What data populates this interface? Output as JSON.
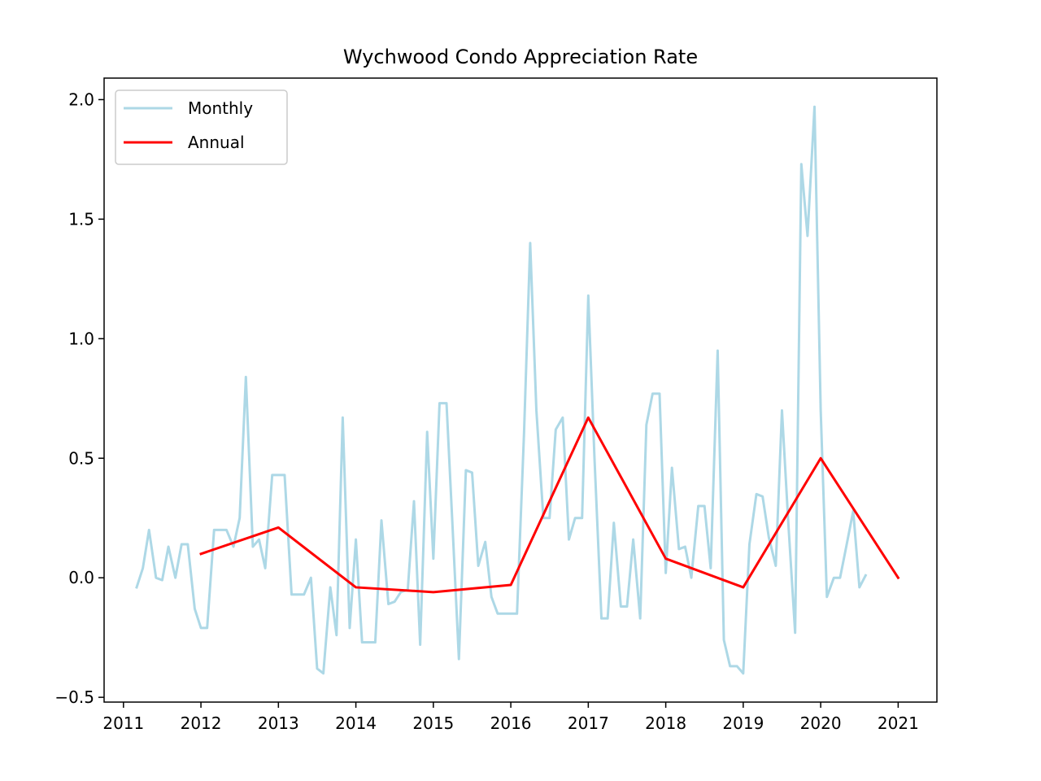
{
  "chart_data": {
    "type": "line",
    "title": "Wychwood Condo Appreciation Rate",
    "xlabel": "",
    "ylabel": "",
    "xlim": [
      2010.75,
      2021.5
    ],
    "ylim": [
      -0.52,
      2.09
    ],
    "x_ticks": [
      2011,
      2012,
      2013,
      2014,
      2015,
      2016,
      2017,
      2018,
      2019,
      2020,
      2021
    ],
    "x_tick_labels": [
      "2011",
      "2012",
      "2013",
      "2014",
      "2015",
      "2016",
      "2017",
      "2018",
      "2019",
      "2020",
      "2021"
    ],
    "y_ticks": [
      -0.5,
      0.0,
      0.5,
      1.0,
      1.5,
      2.0
    ],
    "y_tick_labels": [
      "−0.5",
      "0.0",
      "0.5",
      "1.0",
      "1.5",
      "2.0"
    ],
    "grid": false,
    "legend_position": "top-left",
    "series": [
      {
        "name": "Monthly",
        "color": "#add8e6",
        "x": [
          2011.17,
          2011.25,
          2011.33,
          2011.42,
          2011.5,
          2011.58,
          2011.67,
          2011.75,
          2011.83,
          2011.92,
          2012.0,
          2012.08,
          2012.17,
          2012.25,
          2012.33,
          2012.42,
          2012.5,
          2012.58,
          2012.67,
          2012.75,
          2012.83,
          2012.92,
          2013.0,
          2013.08,
          2013.17,
          2013.25,
          2013.33,
          2013.42,
          2013.5,
          2013.58,
          2013.67,
          2013.75,
          2013.83,
          2013.92,
          2014.0,
          2014.08,
          2014.17,
          2014.25,
          2014.33,
          2014.42,
          2014.5,
          2014.58,
          2014.67,
          2014.75,
          2014.83,
          2014.92,
          2015.0,
          2015.08,
          2015.17,
          2015.25,
          2015.33,
          2015.42,
          2015.5,
          2015.58,
          2015.67,
          2015.75,
          2015.83,
          2015.92,
          2016.0,
          2016.08,
          2016.17,
          2016.25,
          2016.33,
          2016.42,
          2016.5,
          2016.58,
          2016.67,
          2016.75,
          2016.83,
          2016.92,
          2017.0,
          2017.08,
          2017.17,
          2017.25,
          2017.33,
          2017.42,
          2017.5,
          2017.58,
          2017.67,
          2017.75,
          2017.83,
          2017.92,
          2018.0,
          2018.08,
          2018.17,
          2018.25,
          2018.33,
          2018.42,
          2018.5,
          2018.58,
          2018.67,
          2018.75,
          2018.83,
          2018.92,
          2019.0,
          2019.08,
          2019.17,
          2019.25,
          2019.33,
          2019.42,
          2019.5,
          2019.58,
          2019.67,
          2019.75,
          2019.83,
          2019.92,
          2020.0,
          2020.08,
          2020.17,
          2020.25,
          2020.33,
          2020.42,
          2020.5,
          2020.58
        ],
        "values": [
          -0.04,
          0.04,
          0.2,
          0.0,
          -0.01,
          0.13,
          0.0,
          0.14,
          0.14,
          -0.13,
          -0.21,
          -0.21,
          0.2,
          0.2,
          0.2,
          0.13,
          0.25,
          0.84,
          0.13,
          0.16,
          0.04,
          0.43,
          0.43,
          0.43,
          -0.07,
          -0.07,
          -0.07,
          0.0,
          -0.38,
          -0.4,
          -0.04,
          -0.24,
          0.67,
          -0.21,
          0.16,
          -0.27,
          -0.27,
          -0.27,
          0.24,
          -0.11,
          -0.1,
          -0.06,
          -0.05,
          0.32,
          -0.28,
          0.61,
          0.08,
          0.73,
          0.73,
          0.2,
          -0.34,
          0.45,
          0.44,
          0.05,
          0.15,
          -0.08,
          -0.15,
          -0.15,
          -0.15,
          -0.15,
          0.6,
          1.4,
          0.7,
          0.25,
          0.25,
          0.62,
          0.67,
          0.16,
          0.25,
          0.25,
          1.18,
          0.5,
          -0.17,
          -0.17,
          0.23,
          -0.12,
          -0.12,
          0.16,
          -0.17,
          0.64,
          0.77,
          0.77,
          0.02,
          0.46,
          0.12,
          0.13,
          0.0,
          0.3,
          0.3,
          0.04,
          0.95,
          -0.26,
          -0.37,
          -0.37,
          -0.4,
          0.14,
          0.35,
          0.34,
          0.17,
          0.05,
          0.7,
          0.24,
          -0.23,
          1.73,
          1.43,
          1.97,
          0.7,
          -0.08,
          0.0,
          0.0,
          0.13,
          0.28,
          -0.04,
          0.01
        ]
      },
      {
        "name": "Annual",
        "color": "#ff0000",
        "x": [
          2012,
          2013,
          2014,
          2015,
          2016,
          2017,
          2018,
          2019,
          2020,
          2021
        ],
        "values": [
          0.1,
          0.21,
          -0.04,
          -0.06,
          -0.03,
          0.67,
          0.08,
          -0.04,
          0.5,
          0.0
        ]
      }
    ]
  }
}
